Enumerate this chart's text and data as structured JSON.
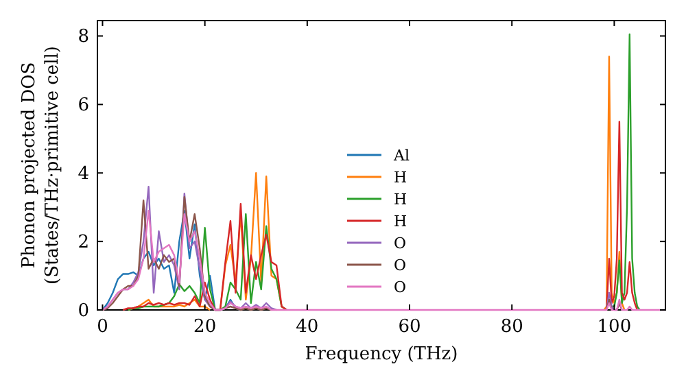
{
  "chart_data": {
    "type": "line",
    "xlabel": "Frequency (THz)",
    "ylabel": "Phonon projected DOS\n(States/THz·primitive cell)",
    "x": [
      0,
      1,
      2,
      3,
      4,
      5,
      6,
      7,
      8,
      9,
      10,
      11,
      12,
      13,
      14,
      15,
      16,
      17,
      18,
      19,
      20,
      21,
      22,
      23,
      24,
      25,
      26,
      27,
      28,
      29,
      30,
      31,
      32,
      33,
      34,
      35,
      36,
      37,
      96,
      97,
      97.5,
      98,
      98.5,
      99,
      99.5,
      100,
      100.5,
      101,
      101.5,
      102,
      102.5,
      103,
      103.5,
      104,
      104.5,
      105,
      105.5,
      106,
      110
    ],
    "xlim": [
      -1,
      110
    ],
    "xticks": [
      0,
      20,
      40,
      60,
      80,
      100
    ],
    "ylim": [
      0,
      8.45
    ],
    "yticks": [
      0,
      2,
      4,
      6,
      8
    ],
    "grid": false,
    "legend": "center",
    "line_style": "solid",
    "marker": "none",
    "series": [
      {
        "name": "Al",
        "color": "#1f77b4",
        "values": [
          0,
          0.2,
          0.5,
          0.9,
          1.05,
          1.05,
          1.1,
          1.0,
          1.5,
          1.7,
          1.3,
          1.5,
          1.2,
          1.3,
          0.5,
          2.0,
          2.9,
          1.5,
          2.5,
          1.0,
          0.3,
          1.0,
          0,
          0,
          0.05,
          0.3,
          0.05,
          0,
          null,
          null,
          null,
          null,
          null,
          null,
          null,
          null,
          null,
          null,
          null,
          null,
          null,
          null,
          null,
          null,
          null,
          null,
          null,
          null,
          null,
          null,
          null,
          null,
          null,
          null,
          null,
          null,
          null,
          null,
          null
        ]
      },
      {
        "name": "H",
        "color": "#ff7f0e",
        "values": [
          null,
          null,
          null,
          null,
          null,
          0,
          0.05,
          0.1,
          0.2,
          0.3,
          0.1,
          0.1,
          0.1,
          0.1,
          0.1,
          0.15,
          0.1,
          0.2,
          0.3,
          0.1,
          0.1,
          0,
          null,
          0,
          1.3,
          1.9,
          0.8,
          2.8,
          0.3,
          1.5,
          4.0,
          0.8,
          3.9,
          1.0,
          0.9,
          0.1,
          0,
          null,
          null,
          null,
          null,
          0,
          0.1,
          7.4,
          0.5,
          0.2,
          0.5,
          1.7,
          0.2,
          0,
          null,
          null,
          null,
          null,
          null,
          null,
          null,
          null,
          null
        ]
      },
      {
        "name": "H",
        "color": "#2ca02c",
        "values": [
          null,
          null,
          null,
          null,
          null,
          0,
          0.05,
          0.05,
          0.1,
          0.1,
          0.1,
          0.1,
          0.15,
          0.2,
          0.4,
          0.75,
          0.55,
          0.7,
          0.5,
          0.2,
          2.4,
          0.6,
          0,
          0,
          0.1,
          0.8,
          0.6,
          0.3,
          2.8,
          0.2,
          1.4,
          0.6,
          2.45,
          1.2,
          0.9,
          0.1,
          0,
          null,
          null,
          null,
          null,
          null,
          0,
          0.3,
          0.1,
          0.1,
          0.5,
          1.45,
          0.2,
          0.5,
          3.0,
          8.05,
          1.5,
          0.5,
          0.1,
          0,
          null,
          null,
          null
        ]
      },
      {
        "name": "H",
        "color": "#d62728",
        "values": [
          null,
          null,
          null,
          null,
          0,
          0.05,
          0.05,
          0.1,
          0.1,
          0.2,
          0.15,
          0.2,
          0.15,
          0.2,
          0.15,
          0.2,
          0.2,
          0.15,
          0.4,
          0.1,
          0.8,
          0.3,
          0,
          0,
          1.4,
          2.6,
          0.5,
          3.1,
          0.5,
          1.6,
          0.9,
          1.6,
          2.2,
          1.4,
          1.3,
          0.1,
          0,
          null,
          null,
          null,
          null,
          null,
          0,
          1.5,
          0.2,
          0.4,
          1.5,
          5.5,
          0.5,
          0.3,
          0.5,
          1.4,
          0.5,
          0.2,
          0,
          null,
          null,
          null,
          null
        ]
      },
      {
        "name": "O",
        "color": "#9467bd",
        "values": [
          0,
          0.1,
          0.3,
          0.5,
          0.6,
          0.6,
          0.8,
          1.1,
          2.0,
          3.6,
          0.5,
          2.3,
          1.4,
          1.6,
          1.3,
          0.6,
          3.4,
          1.8,
          2.0,
          1.2,
          0.3,
          0.1,
          0,
          0,
          0.05,
          0.25,
          0.1,
          0.05,
          0.2,
          0.05,
          0.15,
          0.05,
          0.2,
          0.05,
          0,
          null,
          null,
          null,
          null,
          null,
          null,
          null,
          0,
          0.5,
          0.1,
          0,
          0,
          0.2,
          0,
          null,
          null,
          null,
          null,
          null,
          null,
          null,
          null,
          null,
          null
        ]
      },
      {
        "name": "O",
        "color": "#8c564b",
        "values": [
          0,
          0.05,
          0.2,
          0.4,
          0.6,
          0.7,
          0.7,
          1.0,
          3.2,
          1.2,
          1.5,
          1.2,
          1.6,
          1.4,
          1.5,
          0.7,
          3.3,
          2.0,
          2.8,
          1.8,
          0.4,
          0.1,
          0,
          0,
          0.05,
          0.1,
          0.05,
          0,
          0.05,
          0,
          0.05,
          0,
          0.05,
          0,
          null,
          null,
          null,
          null,
          null,
          null,
          null,
          null,
          0,
          0.3,
          0,
          null,
          0,
          0.2,
          0,
          null,
          null,
          null,
          null,
          null,
          null,
          null,
          null,
          null,
          null
        ]
      },
      {
        "name": "O",
        "color": "#e377c2",
        "values": [
          0,
          0.1,
          0.3,
          0.5,
          0.6,
          0.6,
          0.7,
          0.9,
          1.5,
          2.9,
          1.4,
          1.7,
          1.8,
          1.9,
          1.6,
          0.8,
          2.8,
          2.0,
          2.3,
          1.5,
          0.5,
          0.2,
          0,
          0,
          0.05,
          0.2,
          0.1,
          0.05,
          0.1,
          0.05,
          0.1,
          0.05,
          0.1,
          0,
          0,
          0,
          0,
          0,
          0,
          0,
          0,
          0,
          0,
          0.2,
          0,
          0,
          0,
          0.3,
          0,
          0,
          0,
          0.1,
          0,
          0,
          0,
          0,
          0,
          0,
          0
        ]
      }
    ]
  }
}
